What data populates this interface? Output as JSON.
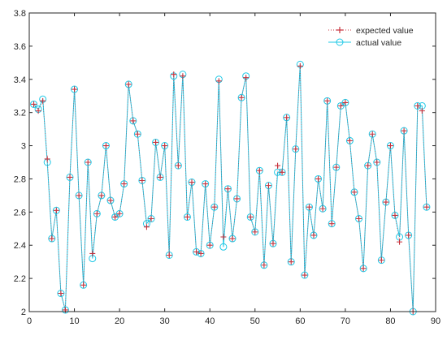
{
  "chart_data": {
    "type": "line",
    "xlim": [
      0,
      90
    ],
    "ylim": [
      2,
      3.8
    ],
    "x_ticks": [
      "0",
      "10",
      "20",
      "30",
      "40",
      "50",
      "60",
      "70",
      "80",
      "90"
    ],
    "y_ticks": [
      "2",
      "2.2",
      "2.4",
      "2.6",
      "2.8",
      "3",
      "3.2",
      "3.4",
      "3.6",
      "3.8"
    ],
    "grid": false,
    "legend_position": "top-right",
    "x": [
      1,
      2,
      3,
      4,
      5,
      6,
      7,
      8,
      9,
      10,
      11,
      12,
      13,
      14,
      15,
      16,
      17,
      18,
      19,
      20,
      21,
      22,
      23,
      24,
      25,
      26,
      27,
      28,
      29,
      30,
      31,
      32,
      33,
      34,
      35,
      36,
      37,
      38,
      39,
      40,
      41,
      42,
      43,
      44,
      45,
      46,
      47,
      48,
      49,
      50,
      51,
      52,
      53,
      54,
      55,
      56,
      57,
      58,
      59,
      60,
      61,
      62,
      63,
      64,
      65,
      66,
      67,
      68,
      69,
      70,
      71,
      72,
      73,
      74,
      75,
      76,
      77,
      78,
      79,
      80,
      81,
      82,
      83,
      84,
      85,
      86,
      87,
      88
    ],
    "series": [
      {
        "name": "expected value",
        "color": "#c8323c",
        "marker": "plus",
        "line_style": "dotted",
        "values": [
          3.25,
          3.21,
          3.27,
          2.92,
          2.44,
          2.61,
          2.11,
          2.01,
          2.81,
          3.34,
          2.7,
          2.16,
          2.9,
          2.35,
          2.59,
          2.7,
          3.0,
          2.67,
          2.57,
          2.59,
          2.77,
          3.37,
          3.15,
          3.07,
          2.79,
          2.51,
          2.56,
          3.02,
          2.81,
          3.0,
          2.34,
          3.43,
          2.88,
          3.42,
          2.57,
          2.78,
          2.36,
          2.35,
          2.77,
          2.4,
          2.63,
          3.39,
          2.45,
          2.74,
          2.44,
          2.68,
          3.29,
          3.41,
          2.57,
          2.48,
          2.85,
          2.28,
          2.76,
          2.41,
          2.88,
          2.84,
          3.17,
          2.3,
          2.98,
          3.48,
          2.22,
          2.63,
          2.46,
          2.8,
          2.62,
          3.27,
          2.53,
          2.87,
          3.24,
          3.26,
          3.03,
          2.72,
          2.56,
          2.26,
          2.88,
          3.07,
          2.9,
          2.31,
          2.66,
          3.0,
          2.58,
          2.42,
          3.09,
          2.46,
          2.0,
          3.24,
          3.21,
          2.63
        ]
      },
      {
        "name": "actual value",
        "color": "#1ec8e6",
        "marker": "circle",
        "line_style": "solid",
        "values": [
          3.25,
          3.22,
          3.28,
          2.9,
          2.44,
          2.61,
          2.11,
          2.01,
          2.81,
          3.34,
          2.7,
          2.16,
          2.9,
          2.32,
          2.59,
          2.7,
          3.0,
          2.67,
          2.57,
          2.59,
          2.77,
          3.37,
          3.15,
          3.07,
          2.79,
          2.53,
          2.56,
          3.02,
          2.81,
          3.0,
          2.34,
          3.42,
          2.88,
          3.43,
          2.57,
          2.78,
          2.36,
          2.35,
          2.77,
          2.4,
          2.63,
          3.4,
          2.39,
          2.74,
          2.44,
          2.68,
          3.29,
          3.42,
          2.57,
          2.48,
          2.85,
          2.28,
          2.76,
          2.41,
          2.84,
          2.84,
          3.17,
          2.3,
          2.98,
          3.49,
          2.22,
          2.63,
          2.46,
          2.8,
          2.62,
          3.27,
          2.53,
          2.87,
          3.24,
          3.26,
          3.03,
          2.72,
          2.56,
          2.26,
          2.88,
          3.07,
          2.9,
          2.31,
          2.66,
          3.0,
          2.58,
          2.45,
          3.09,
          2.46,
          2.0,
          3.24,
          3.24,
          2.63
        ]
      }
    ]
  }
}
